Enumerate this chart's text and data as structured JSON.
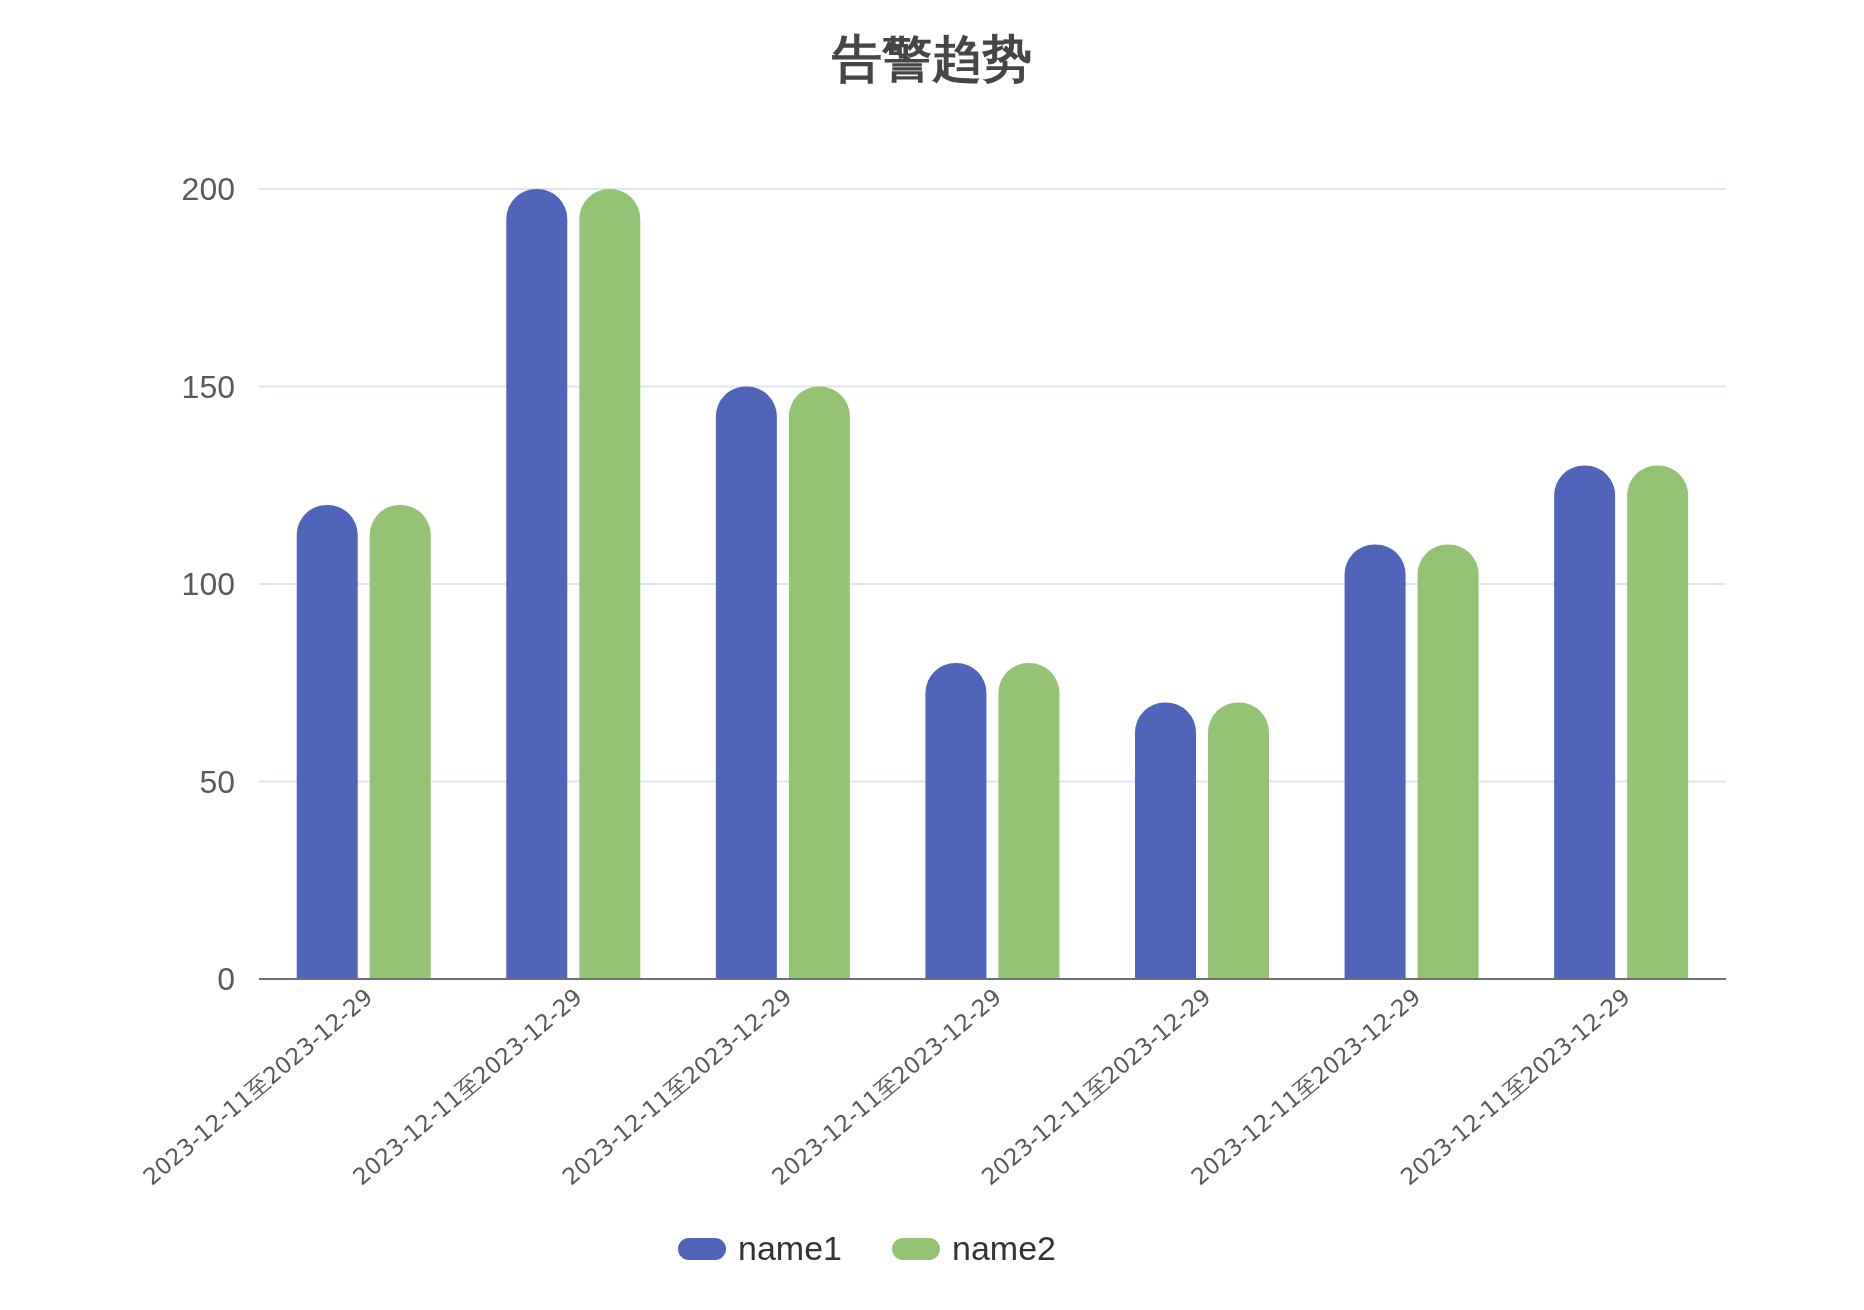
{
  "chart_data": {
    "type": "bar",
    "title": "告警趋势",
    "categories": [
      "2023-12-11至2023-12-29",
      "2023-12-11至2023-12-29",
      "2023-12-11至2023-12-29",
      "2023-12-11至2023-12-29",
      "2023-12-11至2023-12-29",
      "2023-12-11至2023-12-29",
      "2023-12-11至2023-12-29"
    ],
    "series": [
      {
        "name": "name1",
        "color": "#5065b9",
        "values": [
          120,
          200,
          150,
          80,
          70,
          110,
          130
        ]
      },
      {
        "name": "name2",
        "color": "#94c473",
        "values": [
          120,
          200,
          150,
          80,
          70,
          110,
          130
        ]
      }
    ],
    "ylim": [
      0,
      200
    ],
    "yticks": [
      0,
      50,
      100,
      150,
      200
    ],
    "grid": "y",
    "legend": "bottom"
  }
}
